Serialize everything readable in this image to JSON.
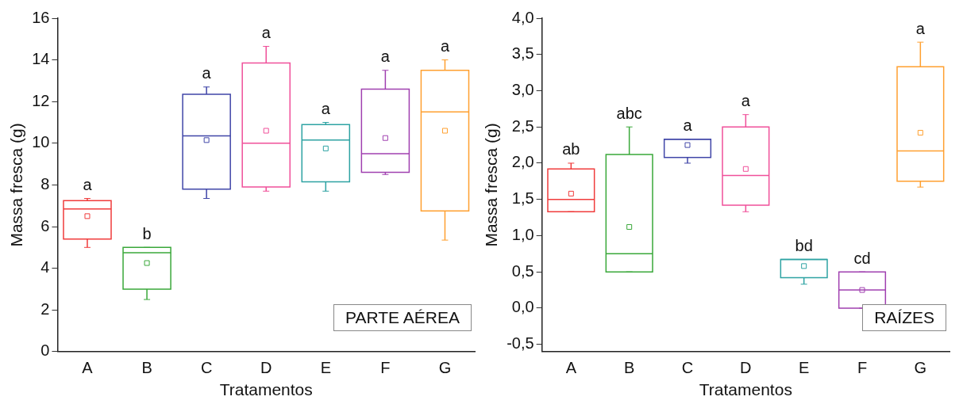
{
  "chart_data": [
    {
      "type": "box",
      "xlabel": "Tratamentos",
      "ylabel": "Massa fresca (g)",
      "categories": [
        "A",
        "B",
        "C",
        "D",
        "E",
        "F",
        "G"
      ],
      "colors": [
        "#f03c3c",
        "#3aa83a",
        "#4046a8",
        "#f0509a",
        "#2ea3a3",
        "#a040b0",
        "#ffa030"
      ],
      "boxes": [
        {
          "low": 5.0,
          "q1": 5.4,
          "median": 6.85,
          "q3": 7.25,
          "high": 7.35,
          "mean": 6.5
        },
        {
          "low": 2.5,
          "q1": 3.0,
          "median": 4.75,
          "q3": 5.0,
          "high": 5.0,
          "mean": 4.25
        },
        {
          "low": 7.35,
          "q1": 7.8,
          "median": 10.35,
          "q3": 12.35,
          "high": 12.7,
          "mean": 10.15
        },
        {
          "low": 7.7,
          "q1": 7.9,
          "median": 10.0,
          "q3": 13.85,
          "high": 14.65,
          "mean": 10.6
        },
        {
          "low": 7.7,
          "q1": 8.15,
          "median": 10.15,
          "q3": 10.9,
          "high": 11.0,
          "mean": 9.75
        },
        {
          "low": 8.5,
          "q1": 8.6,
          "median": 9.5,
          "q3": 12.6,
          "high": 13.5,
          "mean": 10.25
        },
        {
          "low": 5.35,
          "q1": 6.75,
          "median": 11.5,
          "q3": 13.5,
          "high": 14.0,
          "mean": 10.6
        }
      ],
      "ylim": [
        0,
        16
      ],
      "yticks": [
        0,
        2,
        4,
        6,
        8,
        10,
        12,
        14,
        16
      ],
      "grid": false,
      "marker": "square",
      "annotations": [
        "a",
        "b",
        "a",
        "a",
        "a",
        "a",
        "a",
        "PARTE AÉREA"
      ]
    },
    {
      "type": "box",
      "xlabel": "Tratamentos",
      "ylabel": "Massa fresca (g)",
      "categories": [
        "A",
        "B",
        "C",
        "D",
        "E",
        "F",
        "G"
      ],
      "colors": [
        "#f03c3c",
        "#3aa83a",
        "#4046a8",
        "#f0509a",
        "#2ea3a3",
        "#a040b0",
        "#ffa030"
      ],
      "boxes": [
        {
          "low": 1.33,
          "q1": 1.33,
          "median": 1.5,
          "q3": 1.92,
          "high": 2.0,
          "mean": 1.58
        },
        {
          "low": 0.5,
          "q1": 0.5,
          "median": 0.75,
          "q3": 2.12,
          "high": 2.5,
          "mean": 1.12
        },
        {
          "low": 2.0,
          "q1": 2.08,
          "median": 2.33,
          "q3": 2.33,
          "high": 2.33,
          "mean": 2.25
        },
        {
          "low": 1.33,
          "q1": 1.42,
          "median": 1.83,
          "q3": 2.5,
          "high": 2.67,
          "mean": 1.92
        },
        {
          "low": 0.33,
          "q1": 0.42,
          "median": 0.67,
          "q3": 0.67,
          "high": 0.67,
          "mean": 0.58
        },
        {
          "low": 0.0,
          "q1": 0.0,
          "median": 0.25,
          "q3": 0.5,
          "high": 0.5,
          "mean": 0.25
        },
        {
          "low": 1.67,
          "q1": 1.75,
          "median": 2.17,
          "q3": 3.33,
          "high": 3.67,
          "mean": 2.42
        }
      ],
      "ylim": [
        -0.6,
        4.0
      ],
      "yticks": [
        {
          "value": -0.5,
          "label": "-0,5"
        },
        {
          "value": 0,
          "label": "0,0"
        },
        {
          "value": 0.5,
          "label": "0,5"
        },
        {
          "value": 1,
          "label": "1,0"
        },
        {
          "value": 1.5,
          "label": "1,5"
        },
        {
          "value": 2,
          "label": "2,0"
        },
        {
          "value": 2.5,
          "label": "2,5"
        },
        {
          "value": 3,
          "label": "3,0"
        },
        {
          "value": 3.5,
          "label": "3,5"
        },
        {
          "value": 4,
          "label": "4,0"
        }
      ],
      "grid": false,
      "marker": "square",
      "annotations": [
        "ab",
        "abc",
        "a",
        "a",
        "bd",
        "cd",
        "a",
        "RAÍZES"
      ]
    }
  ]
}
